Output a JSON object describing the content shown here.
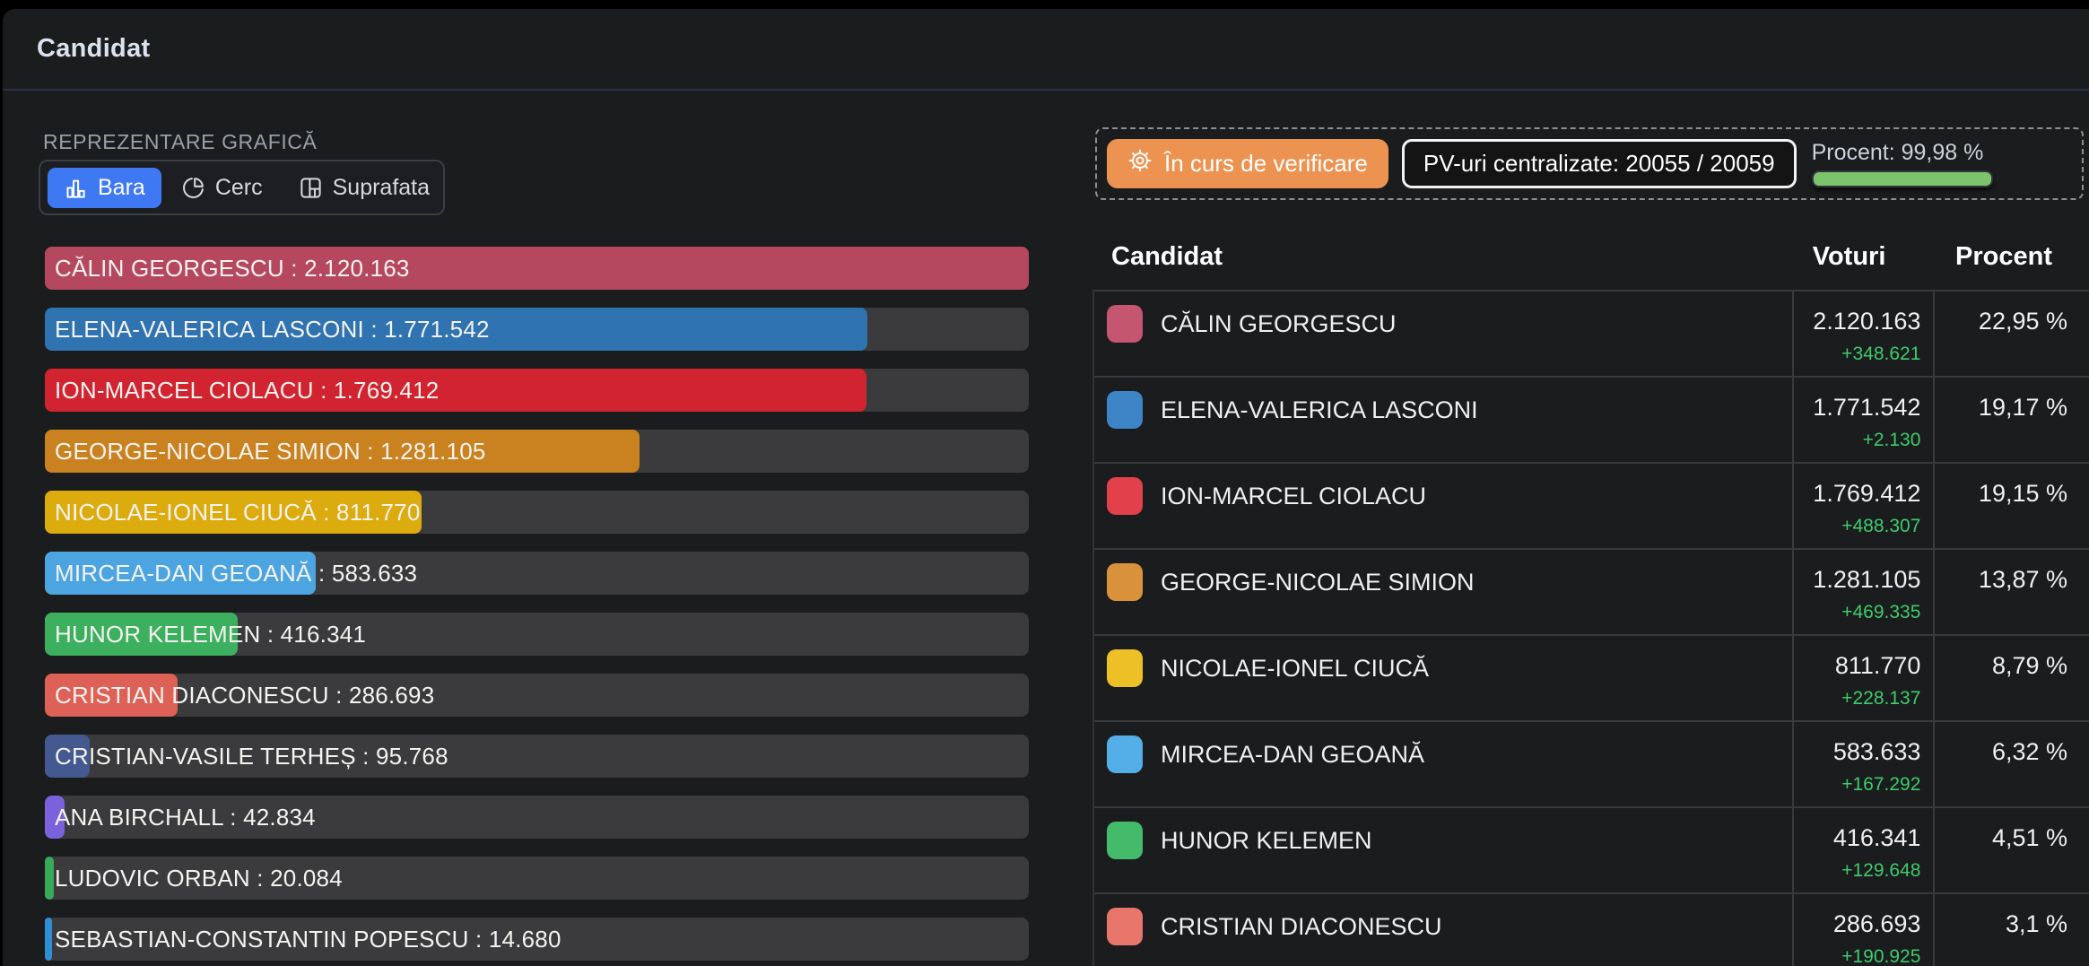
{
  "header": {
    "title": "Candidat"
  },
  "chart": {
    "section_label": "REPREZENTARE GRAFICĂ",
    "modes": [
      {
        "label": "Bara",
        "active": true
      },
      {
        "label": "Cerc",
        "active": false
      },
      {
        "label": "Suprafata",
        "active": false
      }
    ],
    "accent_color": "#3e78f2",
    "track_color": "#3b3b3d",
    "chart_data": {
      "type": "bar",
      "max_value": 2120163,
      "bars": [
        {
          "label": "CĂLIN GEORGESCU : 2.120.163",
          "value": 2120163,
          "pct": 100,
          "color": "#b5485f"
        },
        {
          "label": "ELENA-VALERICA LASCONI : 1.771.542",
          "value": 1771542,
          "pct": 83.56,
          "color": "#2f74b0"
        },
        {
          "label": "ION-MARCEL CIOLACU : 1.769.412",
          "value": 1769412,
          "pct": 83.46,
          "color": "#d12430"
        },
        {
          "label": "GEORGE-NICOLAE SIMION : 1.281.105",
          "value": 1281105,
          "pct": 60.42,
          "color": "#c9821f"
        },
        {
          "label": "NICOLAE-IONEL CIUCĂ : 811.770",
          "value": 811770,
          "pct": 38.29,
          "color": "#dcab0e"
        },
        {
          "label": "MIRCEA-DAN GEOANĂ : 583.633",
          "value": 583633,
          "pct": 27.53,
          "color": "#4ca5e0"
        },
        {
          "label": "HUNOR KELEMEN : 416.341",
          "value": 416341,
          "pct": 19.64,
          "color": "#3cb05f"
        },
        {
          "label": "CRISTIAN DIACONESCU : 286.693",
          "value": 286693,
          "pct": 13.52,
          "color": "#dd6156"
        },
        {
          "label": "CRISTIAN-VASILE TERHEȘ : 95.768",
          "value": 95768,
          "pct": 4.52,
          "color": "#44598f"
        },
        {
          "label": "ANA BIRCHALL : 42.834",
          "value": 42834,
          "pct": 2.02,
          "color": "#7a62dd"
        },
        {
          "label": "LUDOVIC ORBAN : 20.084",
          "value": 20084,
          "pct": 0.95,
          "color": "#38a859"
        },
        {
          "label": "SEBASTIAN-CONSTANTIN POPESCU : 14.680",
          "value": 14680,
          "pct": 0.69,
          "color": "#2f8fd6"
        }
      ]
    }
  },
  "status": {
    "verification_label": "În curs de verificare",
    "pv_label": "PV-uri centralizate: 20055 / 20059",
    "percent_label": "Procent: 99,98 %",
    "progress_pct": 99.98,
    "button_color": "#ec9352",
    "progress_color": "#7cc36d"
  },
  "table": {
    "columns": {
      "candidate": "Candidat",
      "votes": "Voturi",
      "percent": "Procent"
    },
    "delta_color": "#3ecb6c",
    "rows": [
      {
        "name": "CĂLIN GEORGESCU",
        "color": "#c4566f",
        "votes": "2.120.163",
        "delta": "+348.621",
        "percent": "22,95 %"
      },
      {
        "name": "ELENA-VALERICA LASCONI",
        "color": "#3d85c6",
        "votes": "1.771.542",
        "delta": "+2.130",
        "percent": "19,17 %"
      },
      {
        "name": "ION-MARCEL CIOLACU",
        "color": "#e2404b",
        "votes": "1.769.412",
        "delta": "+488.307",
        "percent": "19,15 %"
      },
      {
        "name": "GEORGE-NICOLAE SIMION",
        "color": "#d9923b",
        "votes": "1.281.105",
        "delta": "+469.335",
        "percent": "13,87 %"
      },
      {
        "name": "NICOLAE-IONEL CIUCĂ",
        "color": "#edc028",
        "votes": "811.770",
        "delta": "+228.137",
        "percent": "8,79 %"
      },
      {
        "name": "MIRCEA-DAN GEOANĂ",
        "color": "#54aee8",
        "votes": "583.633",
        "delta": "+167.292",
        "percent": "6,32 %"
      },
      {
        "name": "HUNOR KELEMEN",
        "color": "#43bb6b",
        "votes": "416.341",
        "delta": "+129.648",
        "percent": "4,51 %"
      },
      {
        "name": "CRISTIAN DIACONESCU",
        "color": "#e8766b",
        "votes": "286.693",
        "delta": "+190.925",
        "percent": "3,1 %"
      }
    ]
  }
}
